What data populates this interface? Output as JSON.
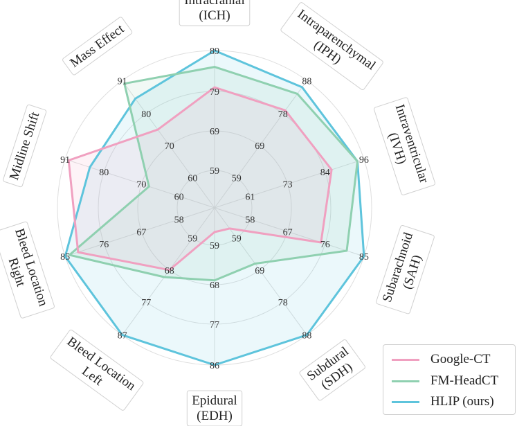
{
  "chart_data": {
    "type": "radar",
    "categories": [
      "Intracranial\n(ICH)",
      "Intraparenchymal\n(IPH)",
      "Intraventricular\n(IVH)",
      "Subarachnoid\n(SAH)",
      "Subdural\n(SDH)",
      "Epidural\n(EDH)",
      "Bleed Location\nLeft",
      "Bleed Location\nRight",
      "Midline Shift",
      "Mass Effect"
    ],
    "tick_labels": [
      [
        "59",
        "69",
        "79",
        "89"
      ],
      [
        "59",
        "69",
        "78",
        "88"
      ],
      [
        "61",
        "73",
        "84",
        "96"
      ],
      [
        "58",
        "67",
        "76",
        "85"
      ],
      [
        "59",
        "69",
        "78",
        "88"
      ],
      [
        "59",
        "68",
        "77",
        "86"
      ],
      [
        "59",
        "68",
        "77",
        "87"
      ],
      [
        "58",
        "67",
        "76",
        "85"
      ],
      [
        "60",
        "70",
        "80",
        "91"
      ],
      [
        "60",
        "70",
        "80",
        "91"
      ]
    ],
    "series": [
      {
        "name": "Google-CT",
        "color": "#f0a0c0",
        "values": [
          80,
          79,
          86,
          75,
          56,
          56,
          68,
          82,
          90,
          75
        ]
      },
      {
        "name": "FM-HeadCT",
        "color": "#8fd0b0",
        "values": [
          85,
          84,
          94,
          81,
          67,
          67,
          70,
          84,
          68,
          90
        ]
      },
      {
        "name": "HLIP (ours)",
        "color": "#5ec4dc",
        "values": [
          89,
          86,
          94,
          85,
          88,
          86,
          87,
          85,
          84,
          85
        ]
      }
    ],
    "legend_position": "bottom-right",
    "grid": true
  }
}
